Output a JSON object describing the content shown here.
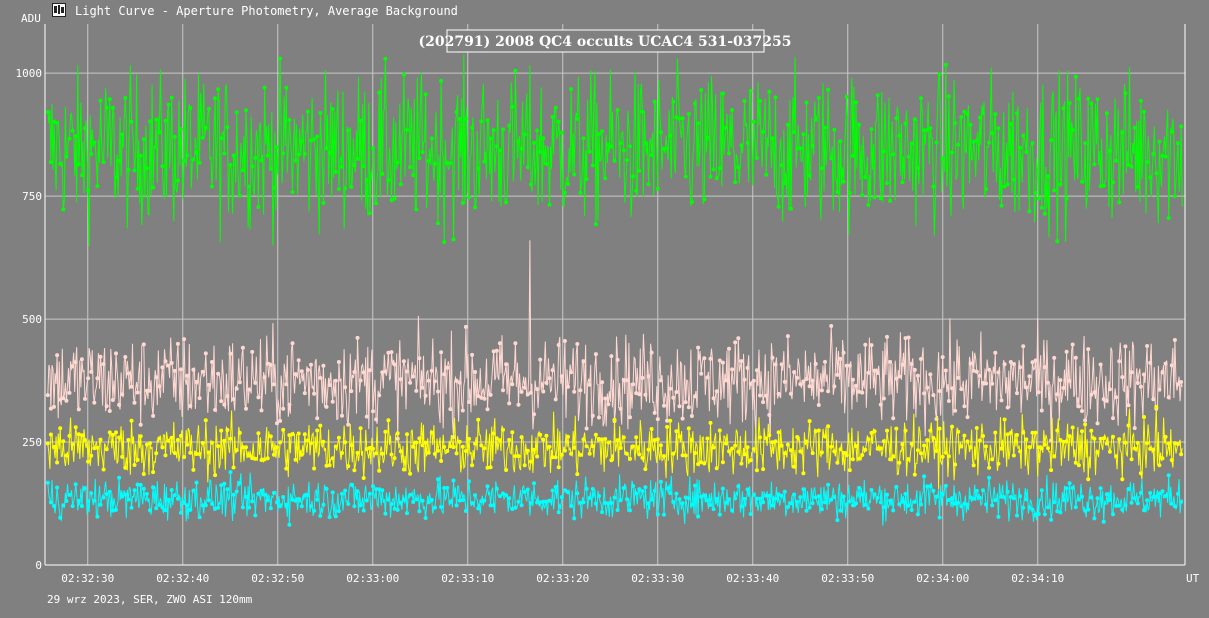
{
  "window": {
    "title": "Light Curve - Aperture Photometry, Average Background",
    "icon": "light-curve-app-icon"
  },
  "footer": {
    "text": "29 wrz 2023, SER, ZWO ASI 120mm"
  },
  "chart_data": {
    "type": "line",
    "title": "(202791) 2008 QC4 occults UCAC4 531-037255",
    "ylabel": "ADU",
    "xlabel": "UT",
    "ylim": [
      0,
      1100
    ],
    "yticks": [
      0,
      250,
      500,
      750,
      1000
    ],
    "ytick_labels": [
      "0",
      "250",
      "500",
      "750",
      "1000"
    ],
    "xrange_seconds_from_023220": [
      5.5,
      125.5
    ],
    "xticks": [
      "02:32:30",
      "02:32:40",
      "02:32:50",
      "02:33:00",
      "02:33:10",
      "02:33:20",
      "02:33:30",
      "02:33:40",
      "02:33:50",
      "02:34:00",
      "02:34:10"
    ],
    "grid": true,
    "markers": true,
    "series": [
      {
        "color": "#00ff00",
        "mean": 845,
        "spread": 75
      },
      {
        "color": "#ffd8d2",
        "mean": 375,
        "spread": 45,
        "events": [
          {
            "time": "02:33:16.5",
            "value": 660
          }
        ]
      },
      {
        "color": "#ffff00",
        "mean": 238,
        "spread": 28
      },
      {
        "color": "#00ffff",
        "mean": 135,
        "spread": 20
      }
    ]
  }
}
